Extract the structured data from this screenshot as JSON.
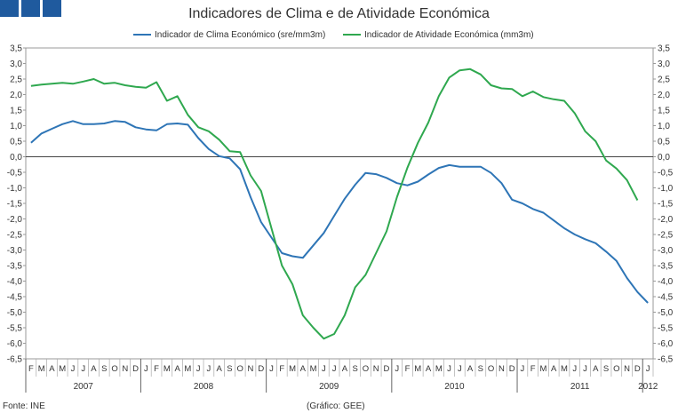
{
  "logo": {
    "icon": "ine-logo-squares",
    "color": "#1f5a9e"
  },
  "footer": {
    "source": "Fonte: INE",
    "credit": "(Gráfico: GEE)"
  },
  "chart_data": {
    "type": "line",
    "title": "Indicadores de Clima e de Atividade Económica",
    "ylim": [
      -6.5,
      3.5
    ],
    "yticks": [
      "3,5",
      "3,0",
      "2,5",
      "2,0",
      "1,5",
      "1,0",
      "0,5",
      "0,0",
      "-0,5",
      "-1,0",
      "-1,5",
      "-2,0",
      "-2,5",
      "-3,0",
      "-3,5",
      "-4,0",
      "-4,5",
      "-5,0",
      "-5,5",
      "-6,0",
      "-6,5"
    ],
    "month_labels": [
      "F",
      "M",
      "A",
      "M",
      "J",
      "J",
      "A",
      "S",
      "O",
      "N",
      "D",
      "J",
      "F",
      "M",
      "A",
      "M",
      "J",
      "J",
      "A",
      "S",
      "O",
      "N",
      "D",
      "J",
      "F",
      "M",
      "A",
      "M",
      "J",
      "J",
      "A",
      "S",
      "O",
      "N",
      "D",
      "J",
      "F",
      "M",
      "A",
      "M",
      "J",
      "J",
      "A",
      "S",
      "O",
      "N",
      "D",
      "J",
      "F",
      "M",
      "A",
      "M",
      "J",
      "J",
      "A",
      "S",
      "O",
      "N",
      "D",
      "J"
    ],
    "years": [
      {
        "label": "2007",
        "start": 0,
        "end": 11
      },
      {
        "label": "2008",
        "start": 11,
        "end": 23
      },
      {
        "label": "2009",
        "start": 23,
        "end": 35
      },
      {
        "label": "2010",
        "start": 35,
        "end": 47
      },
      {
        "label": "2011",
        "start": 47,
        "end": 59
      },
      {
        "label": "2012",
        "start": 59,
        "end": 60
      }
    ],
    "series": [
      {
        "name": "Indicador de Clima Económico (sre/mm3m)",
        "color": "#2e75b6",
        "values": [
          0.45,
          0.75,
          0.9,
          1.05,
          1.15,
          1.05,
          1.05,
          1.07,
          1.15,
          1.12,
          0.95,
          0.88,
          0.85,
          1.05,
          1.07,
          1.03,
          0.6,
          0.25,
          0.02,
          -0.05,
          -0.4,
          -1.3,
          -2.1,
          -2.6,
          -3.1,
          -3.2,
          -3.25,
          -2.85,
          -2.45,
          -1.9,
          -1.35,
          -0.9,
          -0.52,
          -0.56,
          -0.68,
          -0.85,
          -0.92,
          -0.8,
          -0.57,
          -0.36,
          -0.27,
          -0.32,
          -0.32,
          -0.32,
          -0.52,
          -0.85,
          -1.38,
          -1.5,
          -1.68,
          -1.8,
          -2.05,
          -2.3,
          -2.5,
          -2.65,
          -2.78,
          -3.05,
          -3.35,
          -3.9,
          -4.35,
          -4.7
        ]
      },
      {
        "name": "Indicador de Atividade Económica (mm3m)",
        "color": "#2fa84f",
        "values": [
          2.28,
          2.32,
          2.35,
          2.38,
          2.35,
          2.42,
          2.5,
          2.35,
          2.38,
          2.3,
          2.25,
          2.22,
          2.4,
          1.8,
          1.95,
          1.35,
          0.95,
          0.82,
          0.55,
          0.18,
          0.15,
          -0.6,
          -1.1,
          -2.3,
          -3.5,
          -4.1,
          -5.1,
          -5.5,
          -5.85,
          -5.7,
          -5.1,
          -4.2,
          -3.8,
          -3.1,
          -2.4,
          -1.3,
          -0.35,
          0.45,
          1.1,
          1.95,
          2.55,
          2.78,
          2.82,
          2.65,
          2.3,
          2.2,
          2.18,
          1.95,
          2.1,
          1.92,
          1.85,
          1.8,
          1.4,
          0.82,
          0.5,
          -0.12,
          -0.38,
          -0.75,
          -1.4
        ]
      }
    ]
  }
}
